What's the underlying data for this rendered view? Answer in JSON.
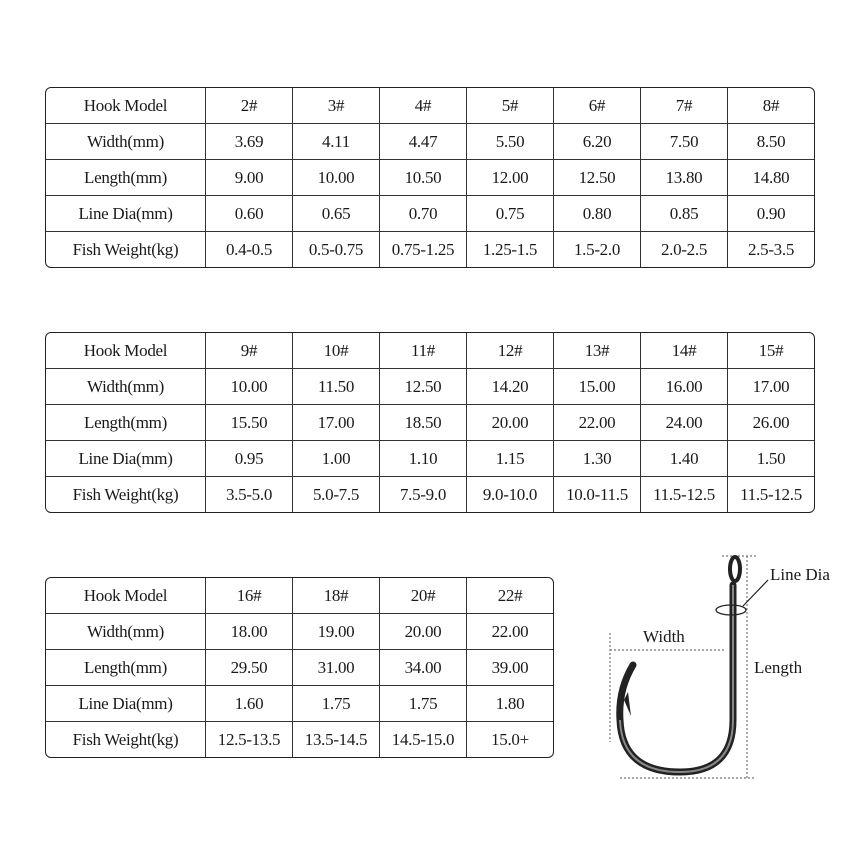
{
  "row_labels": [
    "Hook Model",
    "Width(mm)",
    "Length(mm)",
    "Line Dia(mm)",
    "Fish Weight(kg)"
  ],
  "tables": [
    {
      "rows": [
        [
          "2#",
          "3#",
          "4#",
          "5#",
          "6#",
          "7#",
          "8#"
        ],
        [
          "3.69",
          "4.11",
          "4.47",
          "5.50",
          "6.20",
          "7.50",
          "8.50"
        ],
        [
          "9.00",
          "10.00",
          "10.50",
          "12.00",
          "12.50",
          "13.80",
          "14.80"
        ],
        [
          "0.60",
          "0.65",
          "0.70",
          "0.75",
          "0.80",
          "0.85",
          "0.90"
        ],
        [
          "0.4-0.5",
          "0.5-0.75",
          "0.75-1.25",
          "1.25-1.5",
          "1.5-2.0",
          "2.0-2.5",
          "2.5-3.5"
        ]
      ]
    },
    {
      "rows": [
        [
          "9#",
          "10#",
          "11#",
          "12#",
          "13#",
          "14#",
          "15#"
        ],
        [
          "10.00",
          "11.50",
          "12.50",
          "14.20",
          "15.00",
          "16.00",
          "17.00"
        ],
        [
          "15.50",
          "17.00",
          "18.50",
          "20.00",
          "22.00",
          "24.00",
          "26.00"
        ],
        [
          "0.95",
          "1.00",
          "1.10",
          "1.15",
          "1.30",
          "1.40",
          "1.50"
        ],
        [
          "3.5-5.0",
          "5.0-7.5",
          "7.5-9.0",
          "9.0-10.0",
          "10.0-11.5",
          "11.5-12.5",
          "11.5-12.5"
        ]
      ]
    },
    {
      "rows": [
        [
          "16#",
          "18#",
          "20#",
          "22#"
        ],
        [
          "18.00",
          "19.00",
          "20.00",
          "22.00"
        ],
        [
          "29.50",
          "31.00",
          "34.00",
          "39.00"
        ],
        [
          "1.60",
          "1.75",
          "1.75",
          "1.80"
        ],
        [
          "12.5-13.5",
          "13.5-14.5",
          "14.5-15.0",
          "15.0+"
        ]
      ]
    }
  ],
  "diagram": {
    "line_dia_label": "Line Dia",
    "width_label": "Width",
    "length_label": "Length"
  }
}
